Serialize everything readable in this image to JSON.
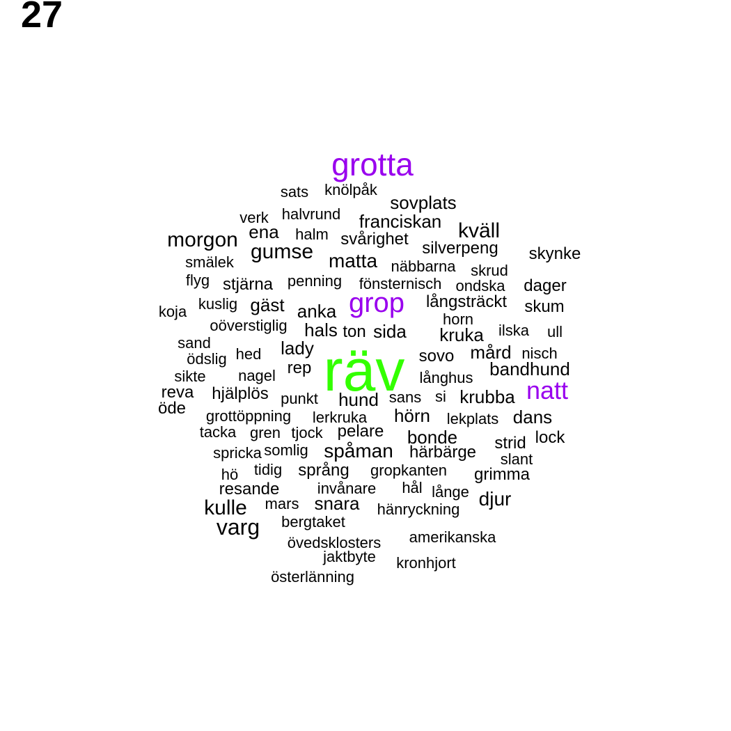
{
  "label": "27",
  "colors": {
    "primary": "#33ff00",
    "secondary": "#9900ee",
    "default": "#000000"
  },
  "words": [
    {
      "text": "räv",
      "level": "primary"
    },
    {
      "text": "grotta",
      "level": "secondary"
    },
    {
      "text": "grop",
      "level": "secondary"
    },
    {
      "text": "natt",
      "level": "secondary"
    },
    {
      "text": "sats"
    },
    {
      "text": "knölpåk"
    },
    {
      "text": "sovplats"
    },
    {
      "text": "verk"
    },
    {
      "text": "halvrund"
    },
    {
      "text": "franciskan"
    },
    {
      "text": "ena"
    },
    {
      "text": "halm"
    },
    {
      "text": "kväll"
    },
    {
      "text": "morgon"
    },
    {
      "text": "svårighet"
    },
    {
      "text": "silverpeng"
    },
    {
      "text": "gumse"
    },
    {
      "text": "skynke"
    },
    {
      "text": "smälek"
    },
    {
      "text": "matta"
    },
    {
      "text": "näbbarna"
    },
    {
      "text": "skrud"
    },
    {
      "text": "flyg"
    },
    {
      "text": "stjärna"
    },
    {
      "text": "penning"
    },
    {
      "text": "fönsternisch"
    },
    {
      "text": "ondska"
    },
    {
      "text": "dager"
    },
    {
      "text": "koja"
    },
    {
      "text": "kuslig"
    },
    {
      "text": "gäst"
    },
    {
      "text": "anka"
    },
    {
      "text": "långsträckt"
    },
    {
      "text": "skum"
    },
    {
      "text": "oöverstiglig"
    },
    {
      "text": "horn"
    },
    {
      "text": "hals"
    },
    {
      "text": "ton"
    },
    {
      "text": "sida"
    },
    {
      "text": "ilska"
    },
    {
      "text": "kruka"
    },
    {
      "text": "ull"
    },
    {
      "text": "sand"
    },
    {
      "text": "lady"
    },
    {
      "text": "hed"
    },
    {
      "text": "mård"
    },
    {
      "text": "nisch"
    },
    {
      "text": "ödslig"
    },
    {
      "text": "sovo"
    },
    {
      "text": "rep"
    },
    {
      "text": "bandhund"
    },
    {
      "text": "sikte"
    },
    {
      "text": "nagel"
    },
    {
      "text": "långhus"
    },
    {
      "text": "reva"
    },
    {
      "text": "hjälplös"
    },
    {
      "text": "punkt"
    },
    {
      "text": "hund"
    },
    {
      "text": "sans"
    },
    {
      "text": "si"
    },
    {
      "text": "krubba"
    },
    {
      "text": "öde"
    },
    {
      "text": "grottöppning"
    },
    {
      "text": "lerkruka"
    },
    {
      "text": "hörn"
    },
    {
      "text": "lekplats"
    },
    {
      "text": "dans"
    },
    {
      "text": "tacka"
    },
    {
      "text": "gren"
    },
    {
      "text": "tjock"
    },
    {
      "text": "pelare"
    },
    {
      "text": "bonde"
    },
    {
      "text": "strid"
    },
    {
      "text": "lock"
    },
    {
      "text": "spricka"
    },
    {
      "text": "somlig"
    },
    {
      "text": "spåman"
    },
    {
      "text": "härbärge"
    },
    {
      "text": "slant"
    },
    {
      "text": "hö"
    },
    {
      "text": "tidig"
    },
    {
      "text": "språng"
    },
    {
      "text": "gropkanten"
    },
    {
      "text": "grimma"
    },
    {
      "text": "resande"
    },
    {
      "text": "invånare"
    },
    {
      "text": "hål"
    },
    {
      "text": "långe"
    },
    {
      "text": "djur"
    },
    {
      "text": "kulle"
    },
    {
      "text": "mars"
    },
    {
      "text": "snara"
    },
    {
      "text": "hänryckning"
    },
    {
      "text": "varg"
    },
    {
      "text": "bergtaket"
    },
    {
      "text": "amerikanska"
    },
    {
      "text": "övedsklosters"
    },
    {
      "text": "jaktbyte"
    },
    {
      "text": "kronhjort"
    },
    {
      "text": "österlänning"
    }
  ]
}
